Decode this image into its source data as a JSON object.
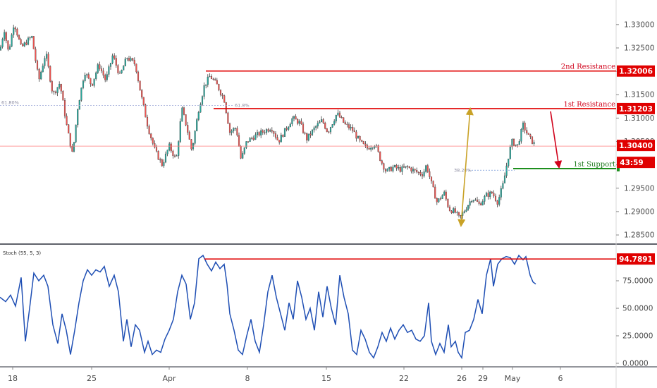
{
  "chart_data": [
    {
      "type": "candlestick",
      "title": "",
      "ylim": [
        1.2835,
        1.3345
      ],
      "yticks": [
        "1.33000",
        "1.32500",
        "1.32000",
        "1.31500",
        "1.31000",
        "1.30500",
        "1.30000",
        "1.29500",
        "1.29000",
        "1.28500"
      ],
      "x_labels": [
        "18",
        "25",
        "Apr",
        "8",
        "15",
        "22",
        "26",
        "29",
        "May",
        "6"
      ],
      "price_path": [
        [
          0,
          1.3245
        ],
        [
          6,
          1.329
        ],
        [
          12,
          1.324
        ],
        [
          20,
          1.3305
        ],
        [
          30,
          1.325
        ],
        [
          45,
          1.3275
        ],
        [
          55,
          1.318
        ],
        [
          65,
          1.324
        ],
        [
          75,
          1.315
        ],
        [
          85,
          1.3175
        ],
        [
          95,
          1.308
        ],
        [
          103,
          1.302
        ],
        [
          110,
          1.312
        ],
        [
          120,
          1.32
        ],
        [
          130,
          1.317
        ],
        [
          140,
          1.3215
        ],
        [
          150,
          1.318
        ],
        [
          160,
          1.3235
        ],
        [
          170,
          1.319
        ],
        [
          180,
          1.323
        ],
        [
          192,
          1.3215
        ],
        [
          200,
          1.315
        ],
        [
          210,
          1.308
        ],
        [
          220,
          1.303
        ],
        [
          230,
          1.3
        ],
        [
          240,
          1.304
        ],
        [
          250,
          1.301
        ],
        [
          258,
          1.312
        ],
        [
          265,
          1.308
        ],
        [
          272,
          1.303
        ],
        [
          282,
          1.312
        ],
        [
          290,
          1.317
        ],
        [
          298,
          1.319
        ],
        [
          308,
          1.317
        ],
        [
          318,
          1.314
        ],
        [
          326,
          1.307
        ],
        [
          335,
          1.308
        ],
        [
          342,
          1.301
        ],
        [
          350,
          1.305
        ],
        [
          360,
          1.306
        ],
        [
          372,
          1.307
        ],
        [
          385,
          1.308
        ],
        [
          395,
          1.305
        ],
        [
          405,
          1.3075
        ],
        [
          415,
          1.31
        ],
        [
          425,
          1.309
        ],
        [
          435,
          1.3055
        ],
        [
          447,
          1.308
        ],
        [
          457,
          1.3095
        ],
        [
          465,
          1.307
        ],
        [
          478,
          1.311
        ],
        [
          490,
          1.3085
        ],
        [
          500,
          1.3075
        ],
        [
          510,
          1.305
        ],
        [
          520,
          1.3035
        ],
        [
          532,
          1.3045
        ],
        [
          540,
          1.301
        ],
        [
          548,
          1.2985
        ],
        [
          558,
          1.2995
        ],
        [
          568,
          1.299
        ],
        [
          578,
          1.2995
        ],
        [
          590,
          1.2985
        ],
        [
          600,
          1.298
        ],
        [
          605,
          1.3
        ],
        [
          612,
          1.296
        ],
        [
          620,
          1.292
        ],
        [
          630,
          1.294
        ],
        [
          637,
          1.2905
        ],
        [
          645,
          1.29
        ],
        [
          652,
          1.2885
        ],
        [
          660,
          1.2905
        ],
        [
          670,
          1.293
        ],
        [
          680,
          1.2915
        ],
        [
          690,
          1.2935
        ],
        [
          698,
          1.294
        ],
        [
          706,
          1.292
        ],
        [
          714,
          1.296
        ],
        [
          720,
          1.301
        ],
        [
          726,
          1.305
        ],
        [
          734,
          1.304
        ],
        [
          742,
          1.3085
        ],
        [
          750,
          1.306
        ],
        [
          760,
          1.304
        ]
      ],
      "annotations": {
        "resistance_2": {
          "label": "2nd Resistance",
          "value": 1.32006,
          "badge": "1.32006"
        },
        "resistance_1": {
          "label": "1st Resistance",
          "value": 1.31203,
          "badge": "1.31203"
        },
        "support_1": {
          "label": "1st Support",
          "value": 1.2992
        },
        "current_price": {
          "value": 1.304,
          "badge": "1.30400",
          "countdown": "43:59"
        },
        "fib_618": {
          "label": "61.80%",
          "value": 1.3127
        },
        "fib_382": {
          "label": "38.20%",
          "value": 1.299
        },
        "fib_small": {
          "label": "61.8%"
        }
      },
      "colors": {
        "up": "#26a69a",
        "down": "#ef5350",
        "resistance": "#e00000",
        "support": "#1e8f1e",
        "arrow_up": "#c9a227",
        "arrow_down": "#d0021b"
      }
    },
    {
      "type": "line",
      "title": "Stoch (55, 5, 3)",
      "ylim": [
        0,
        100
      ],
      "yticks": [
        "75.0000",
        "50.0000",
        "25.0000",
        "0.0000"
      ],
      "series": [
        {
          "name": "Stoch",
          "color": "#1f4fb4",
          "points": [
            [
              0,
              60
            ],
            [
              8,
              56
            ],
            [
              15,
              62
            ],
            [
              22,
              52
            ],
            [
              30,
              78
            ],
            [
              36,
              20
            ],
            [
              42,
              50
            ],
            [
              48,
              82
            ],
            [
              55,
              75
            ],
            [
              62,
              80
            ],
            [
              68,
              70
            ],
            [
              75,
              35
            ],
            [
              82,
              18
            ],
            [
              88,
              45
            ],
            [
              94,
              30
            ],
            [
              100,
              8
            ],
            [
              106,
              30
            ],
            [
              112,
              55
            ],
            [
              118,
              75
            ],
            [
              124,
              85
            ],
            [
              130,
              80
            ],
            [
              136,
              85
            ],
            [
              142,
              83
            ],
            [
              148,
              88
            ],
            [
              155,
              70
            ],
            [
              162,
              80
            ],
            [
              168,
              65
            ],
            [
              175,
              20
            ],
            [
              180,
              40
            ],
            [
              186,
              15
            ],
            [
              192,
              35
            ],
            [
              198,
              30
            ],
            [
              205,
              10
            ],
            [
              210,
              20
            ],
            [
              216,
              8
            ],
            [
              222,
              12
            ],
            [
              228,
              10
            ],
            [
              234,
              22
            ],
            [
              240,
              30
            ],
            [
              246,
              40
            ],
            [
              252,
              65
            ],
            [
              258,
              80
            ],
            [
              264,
              72
            ],
            [
              270,
              40
            ],
            [
              276,
              55
            ],
            [
              282,
              95
            ],
            [
              288,
              98
            ],
            [
              294,
              90
            ],
            [
              300,
              84
            ],
            [
              306,
              92
            ],
            [
              312,
              86
            ],
            [
              318,
              90
            ],
            [
              322,
              72
            ],
            [
              326,
              45
            ],
            [
              332,
              30
            ],
            [
              338,
              12
            ],
            [
              344,
              8
            ],
            [
              350,
              25
            ],
            [
              356,
              40
            ],
            [
              362,
              20
            ],
            [
              368,
              10
            ],
            [
              374,
              35
            ],
            [
              380,
              65
            ],
            [
              386,
              80
            ],
            [
              392,
              60
            ],
            [
              398,
              45
            ],
            [
              404,
              30
            ],
            [
              410,
              55
            ],
            [
              416,
              40
            ],
            [
              422,
              75
            ],
            [
              428,
              60
            ],
            [
              434,
              40
            ],
            [
              440,
              50
            ],
            [
              446,
              30
            ],
            [
              452,
              65
            ],
            [
              458,
              42
            ],
            [
              464,
              70
            ],
            [
              470,
              50
            ],
            [
              476,
              35
            ],
            [
              482,
              80
            ],
            [
              488,
              60
            ],
            [
              494,
              45
            ],
            [
              500,
              12
            ],
            [
              506,
              8
            ],
            [
              512,
              30
            ],
            [
              518,
              22
            ],
            [
              524,
              10
            ],
            [
              530,
              5
            ],
            [
              536,
              15
            ],
            [
              542,
              28
            ],
            [
              548,
              20
            ],
            [
              554,
              32
            ],
            [
              560,
              22
            ],
            [
              566,
              30
            ],
            [
              572,
              35
            ],
            [
              578,
              28
            ],
            [
              584,
              30
            ],
            [
              590,
              22
            ],
            [
              596,
              20
            ],
            [
              602,
              25
            ],
            [
              608,
              55
            ],
            [
              612,
              20
            ],
            [
              618,
              8
            ],
            [
              624,
              18
            ],
            [
              630,
              10
            ],
            [
              636,
              35
            ],
            [
              640,
              15
            ],
            [
              646,
              20
            ],
            [
              650,
              10
            ],
            [
              655,
              5
            ],
            [
              660,
              28
            ],
            [
              666,
              30
            ],
            [
              672,
              40
            ],
            [
              678,
              58
            ],
            [
              684,
              45
            ],
            [
              690,
              80
            ],
            [
              696,
              95
            ],
            [
              700,
              70
            ],
            [
              706,
              90
            ],
            [
              712,
              95
            ],
            [
              718,
              97
            ],
            [
              724,
              96
            ],
            [
              730,
              90
            ],
            [
              736,
              98
            ],
            [
              742,
              94
            ],
            [
              746,
              97
            ],
            [
              752,
              80
            ],
            [
              756,
              74
            ],
            [
              760,
              72
            ]
          ]
        }
      ],
      "annotations": {
        "level": {
          "value": 94.7891,
          "badge": "94.7891"
        }
      }
    }
  ]
}
